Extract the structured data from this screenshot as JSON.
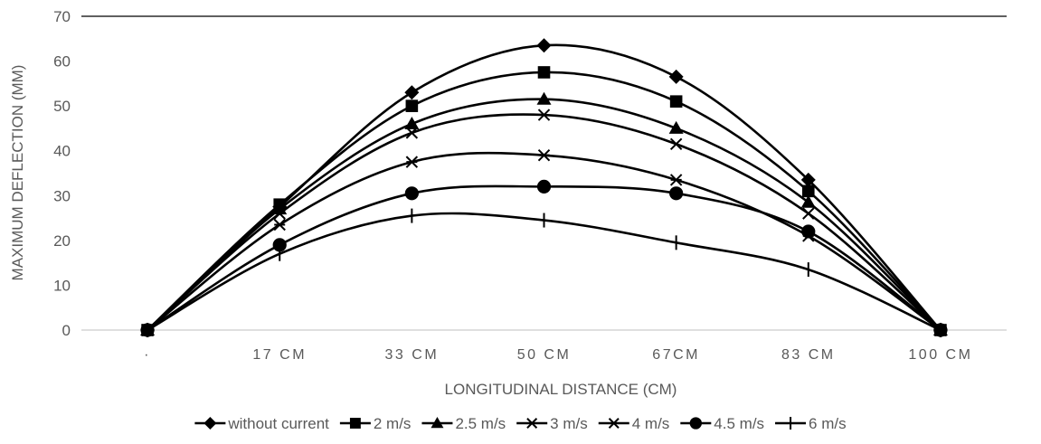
{
  "chart_data": {
    "type": "line",
    "title": "",
    "xlabel": "LONGITUDINAL DISTANCE (CM)",
    "ylabel": "MAXIMUM DEFLECTION (MM)",
    "categories": [
      "·",
      "17 CM",
      "33 CM",
      "50 CM",
      "67CM",
      "83 CM",
      "100 CM"
    ],
    "ylim": [
      0,
      70
    ],
    "yticks": [
      "0",
      "10",
      "20",
      "30",
      "40",
      "50",
      "60",
      "70"
    ],
    "grid": false,
    "legend_position": "bottom",
    "line_color": "#000000",
    "series": [
      {
        "name": "without current",
        "marker": "diamond",
        "values": [
          0,
          27.5,
          53,
          63.5,
          56.5,
          33.5,
          0
        ]
      },
      {
        "name": "2 m/s",
        "marker": "square",
        "values": [
          0,
          28,
          50,
          57.5,
          51,
          31,
          0
        ]
      },
      {
        "name": "2.5 m/s",
        "marker": "triangle",
        "values": [
          0,
          27,
          46,
          51.5,
          45,
          28.5,
          0
        ]
      },
      {
        "name": "3 m/s",
        "marker": "x",
        "values": [
          0,
          26,
          44,
          48,
          41.5,
          26,
          0
        ]
      },
      {
        "name": "4 m/s",
        "marker": "star",
        "values": [
          0,
          23.5,
          37.5,
          39,
          33.5,
          21,
          0
        ]
      },
      {
        "name": "4.5 m/s",
        "marker": "circle",
        "values": [
          0,
          19,
          30.5,
          32,
          30.5,
          22,
          0
        ]
      },
      {
        "name": "6 m/s",
        "marker": "plus",
        "values": [
          0,
          17,
          25.5,
          24.5,
          19.5,
          13.5,
          0
        ]
      }
    ]
  }
}
